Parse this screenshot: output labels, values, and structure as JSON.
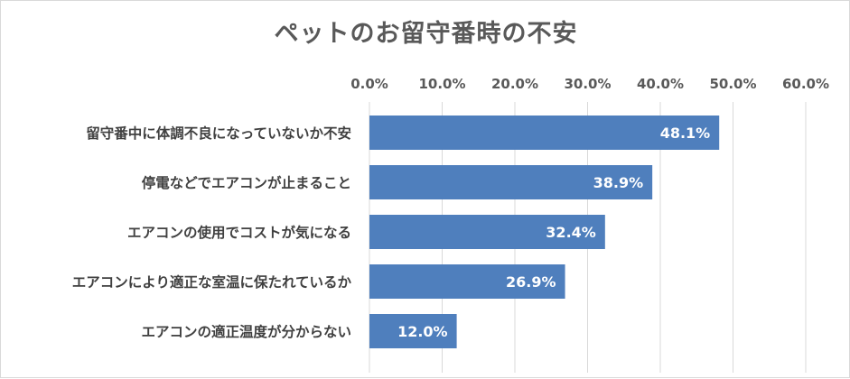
{
  "chart_data": {
    "type": "bar",
    "orientation": "horizontal",
    "title": "ペットのお留守番時の不安",
    "categories": [
      "留守番中に体調不良になっていないか不安",
      "停電などでエアコンが止まること",
      "エアコンの使用でコストが気になる",
      "エアコンにより適正な室温に保たれているか",
      "エアコンの適正温度が分からない"
    ],
    "values": [
      48.1,
      38.9,
      32.4,
      26.9,
      12.0
    ],
    "value_labels": [
      "48.1%",
      "38.9%",
      "32.4%",
      "26.9%",
      "12.0%"
    ],
    "xlim": [
      0,
      60
    ],
    "x_ticks": [
      0,
      10,
      20,
      30,
      40,
      50,
      60
    ],
    "x_tick_labels": [
      "0.0%",
      "10.0%",
      "20.0%",
      "30.0%",
      "40.0%",
      "50.0%",
      "60.0%"
    ],
    "x_axis_position": "top",
    "grid": true,
    "legend": "none",
    "bar_color": "#4f7fbd"
  }
}
